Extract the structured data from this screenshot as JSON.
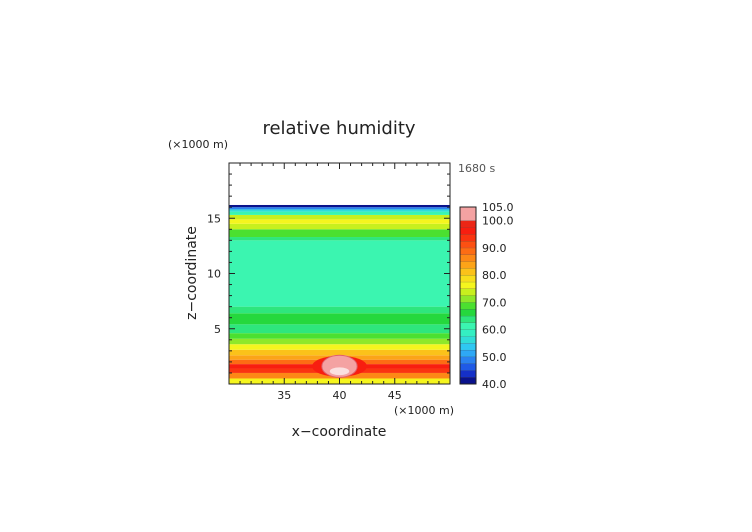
{
  "chart_data": {
    "type": "heatmap",
    "title": "relative humidity",
    "time_label": "1680 s",
    "xlabel": "x−coordinate",
    "ylabel": "z−coordinate",
    "x_unit": "(×1000 m)",
    "y_unit": "(×1000 m)",
    "xlim": [
      30,
      50
    ],
    "ylim": [
      0,
      20
    ],
    "x_ticks": [
      35,
      40,
      45
    ],
    "y_ticks": [
      5,
      10,
      15
    ],
    "colorbar": {
      "levels": [
        40,
        42.5,
        45,
        47.5,
        50,
        52.5,
        55,
        57.5,
        60,
        62.5,
        65,
        67.5,
        70,
        72.5,
        75,
        77.5,
        80,
        82.5,
        85,
        87.5,
        90,
        92.5,
        95,
        97.5,
        100,
        105
      ],
      "colors": [
        "#0a128c",
        "#1530c8",
        "#1f5ae6",
        "#2a82f0",
        "#2ea8f5",
        "#2fc8f2",
        "#30ddd8",
        "#34efc2",
        "#3bf5b0",
        "#2ee67d",
        "#25d83d",
        "#4be030",
        "#8fe82a",
        "#c8f01e",
        "#f5f51e",
        "#f8de1c",
        "#fbc21a",
        "#fca418",
        "#fd8816",
        "#fd6c14",
        "#fc5012",
        "#fa3410",
        "#f81e10",
        "#ec2616",
        "#f4a2a2"
      ],
      "labels": [
        "105.0",
        "100.0",
        "90.0",
        "80.0",
        "70.0",
        "60.0",
        "50.0",
        "40.0"
      ],
      "label_values": [
        105,
        100,
        90,
        80,
        70,
        60,
        50,
        40
      ]
    },
    "layers": [
      {
        "z": [
          0.0,
          0.5
        ],
        "rh": 77
      },
      {
        "z": [
          0.5,
          1.0
        ],
        "rh": 86
      },
      {
        "z": [
          1.0,
          1.4
        ],
        "rh": 93
      },
      {
        "z": [
          1.4,
          1.8
        ],
        "rh": 96
      },
      {
        "z": [
          1.8,
          2.2
        ],
        "rh": 89
      },
      {
        "z": [
          2.2,
          2.6
        ],
        "rh": 84
      },
      {
        "z": [
          2.6,
          3.1
        ],
        "rh": 80
      },
      {
        "z": [
          3.1,
          3.6
        ],
        "rh": 76
      },
      {
        "z": [
          3.6,
          4.1
        ],
        "rh": 72
      },
      {
        "z": [
          4.1,
          4.6
        ],
        "rh": 68
      },
      {
        "z": [
          4.6,
          5.4
        ],
        "rh": 64
      },
      {
        "z": [
          5.4,
          6.4
        ],
        "rh": 67
      },
      {
        "z": [
          6.4,
          7.0
        ],
        "rh": 63
      },
      {
        "z": [
          7.0,
          13.0
        ],
        "rh": 61
      },
      {
        "z": [
          13.0,
          13.3
        ],
        "rh": 64
      },
      {
        "z": [
          13.3,
          14.0
        ],
        "rh": 69
      },
      {
        "z": [
          14.0,
          14.5
        ],
        "rh": 73
      },
      {
        "z": [
          14.5,
          14.9
        ],
        "rh": 76
      },
      {
        "z": [
          14.9,
          15.3
        ],
        "rh": 73
      },
      {
        "z": [
          15.3,
          15.6
        ],
        "rh": 62
      },
      {
        "z": [
          15.6,
          15.8
        ],
        "rh": 56
      },
      {
        "z": [
          15.8,
          16.0
        ],
        "rh": 48
      },
      {
        "z": [
          16.0,
          16.2
        ],
        "rh": 41
      }
    ],
    "cloud": {
      "x_center": 40,
      "z_center": 1.6,
      "x_halfwidth": 1.6,
      "z_halfheight": 1.0,
      "rh": 104
    }
  }
}
